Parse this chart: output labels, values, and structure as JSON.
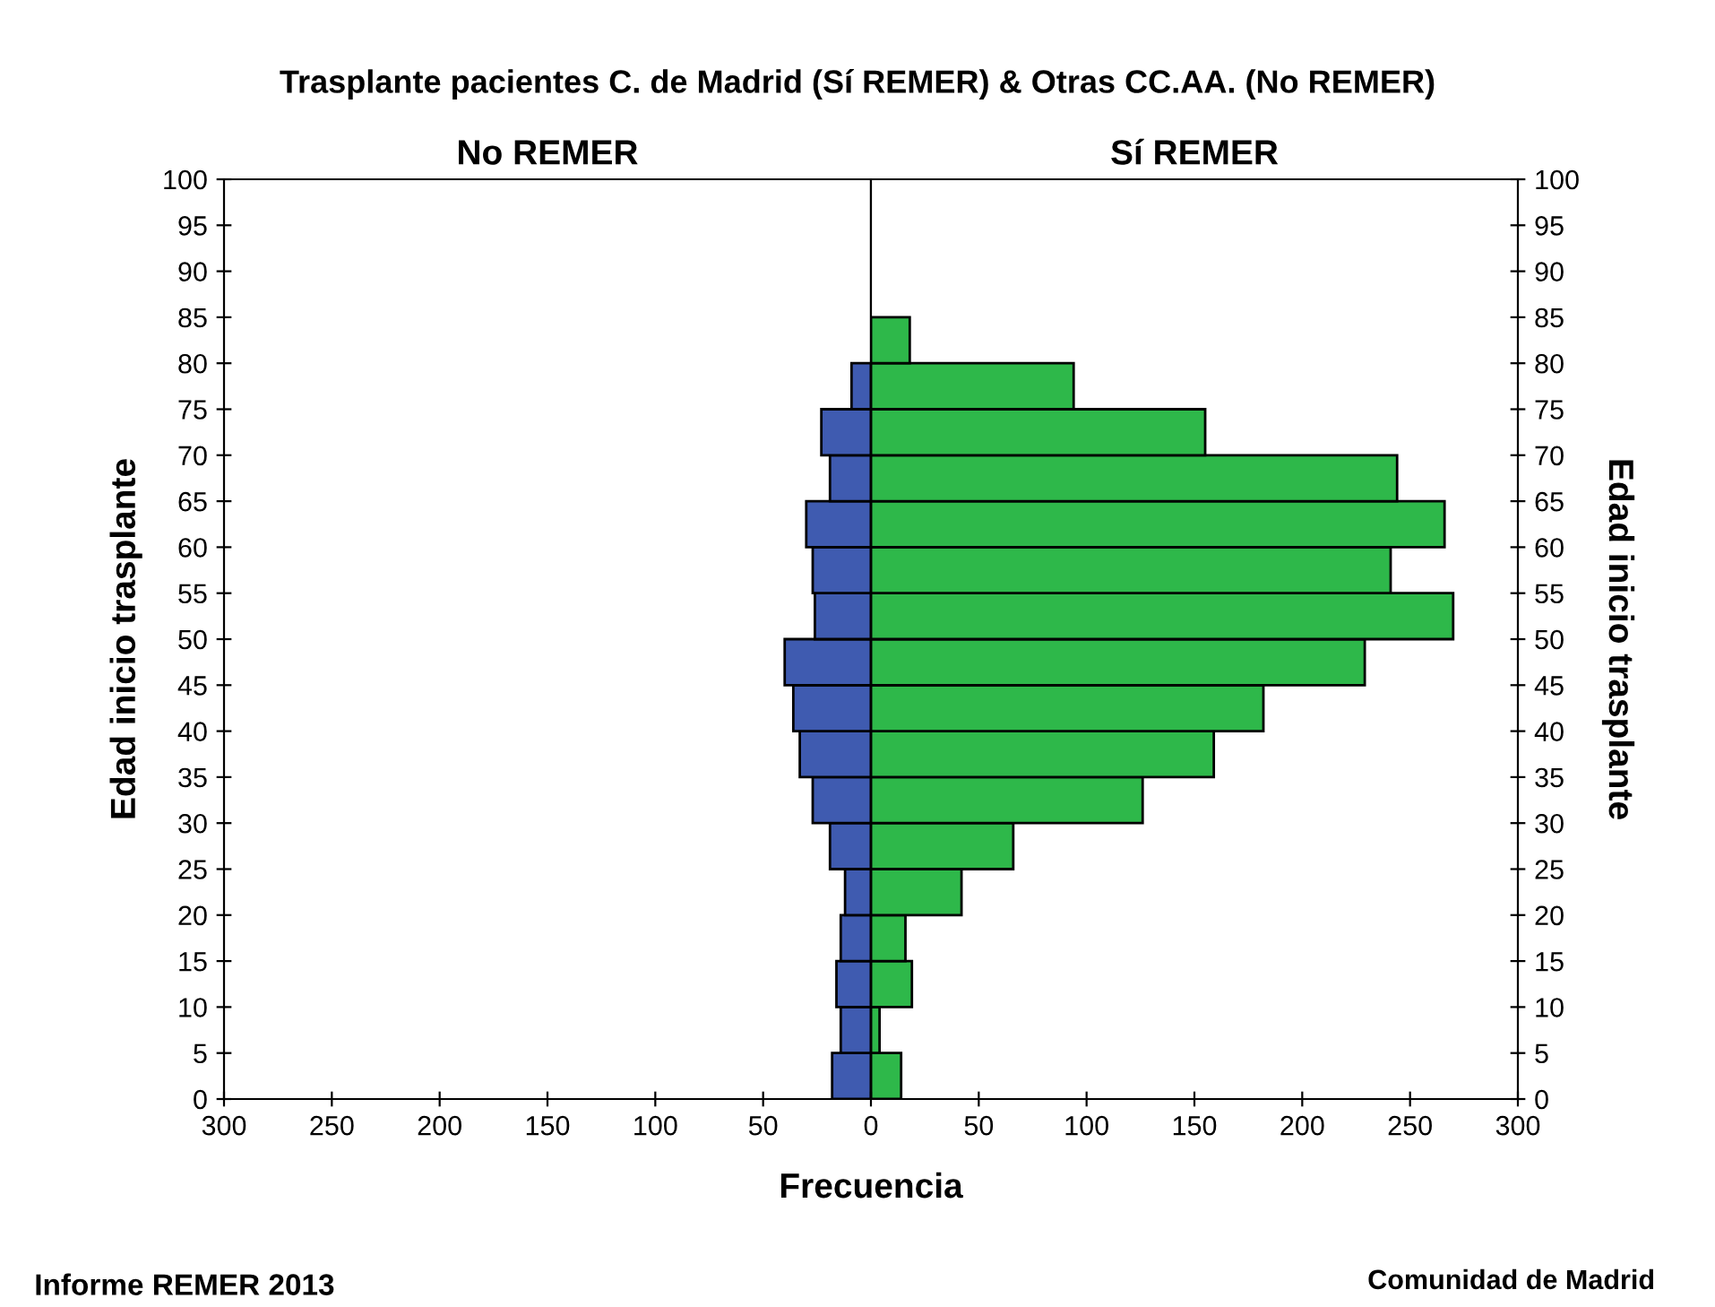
{
  "chart_data": [
    {
      "type": "histogram",
      "orientation": "horizontal",
      "title": "Trasplante pacientes C. de Madrid (Sí REMER) & Otras CC.AA. (No REMER)",
      "subtitle": "No REMER",
      "xlabel": "Frecuencia",
      "ylabel": "Edad inicio trasplante",
      "bins": [
        0,
        5,
        10,
        15,
        20,
        25,
        30,
        35,
        40,
        45,
        50,
        55,
        60,
        65,
        70,
        75,
        80
      ],
      "values": [
        18,
        14,
        16,
        14,
        12,
        19,
        27,
        33,
        36,
        40,
        26,
        27,
        30,
        19,
        23,
        9
      ],
      "color": "#3f5bb0",
      "xlim": [
        300,
        0
      ],
      "xticks": [
        300,
        250,
        200,
        150,
        100,
        50
      ],
      "ylim": [
        0,
        100
      ],
      "yticks": [
        0,
        5,
        10,
        15,
        20,
        25,
        30,
        35,
        40,
        45,
        50,
        55,
        60,
        65,
        70,
        75,
        80,
        85,
        90,
        95,
        100
      ],
      "grid": false,
      "annotations": [
        "Informe REMER 2013"
      ]
    },
    {
      "type": "histogram",
      "orientation": "horizontal",
      "subtitle": "Sí REMER",
      "ylabel": "Edad inicio trasplante",
      "bins": [
        0,
        5,
        10,
        15,
        20,
        25,
        30,
        35,
        40,
        45,
        50,
        55,
        60,
        65,
        70,
        75,
        80,
        85
      ],
      "values": [
        14,
        4,
        19,
        16,
        42,
        66,
        126,
        159,
        182,
        229,
        270,
        241,
        266,
        244,
        155,
        94,
        18
      ],
      "color": "#2eb84a",
      "xlim": [
        0,
        300
      ],
      "xticks": [
        0,
        50,
        100,
        150,
        200,
        250,
        300
      ],
      "ylim": [
        0,
        100
      ],
      "yticks": [
        0,
        5,
        10,
        15,
        20,
        25,
        30,
        35,
        40,
        45,
        50,
        55,
        60,
        65,
        70,
        75,
        80,
        85,
        90,
        95,
        100
      ],
      "grid": false,
      "annotations": [
        "Comunidad de Madrid"
      ]
    }
  ]
}
